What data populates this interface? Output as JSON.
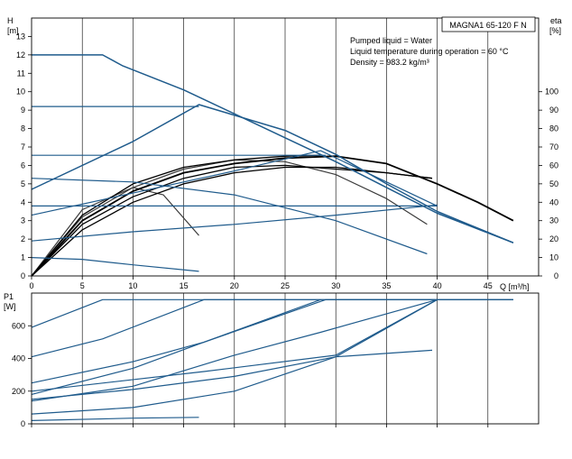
{
  "model_label": "MAGNA1 65-120 F N",
  "info_lines": [
    "Pumped liquid = Water",
    "Liquid temperature during operation = 60 °C",
    "Density = 983.2 kg/m³"
  ],
  "colors": {
    "curve_blue": "#1f5b8c",
    "curve_black": "#000000",
    "curve_gray": "#3a3a3a",
    "axis": "#000000",
    "grid": "#000000"
  },
  "chart_data": [
    {
      "type": "line",
      "y_label_line1": "H",
      "y_label_line2": "[m]",
      "y2_label_line1": "eta",
      "y2_label_line2": "[%]",
      "xlabel": "Q [m³/h]",
      "xlim": [
        0,
        50
      ],
      "ylim": [
        0,
        14
      ],
      "y2lim": [
        0,
        140
      ],
      "x_ticks": [
        0,
        5,
        10,
        15,
        20,
        25,
        30,
        35,
        40,
        45
      ],
      "y_ticks": [
        0,
        1,
        2,
        3,
        4,
        5,
        6,
        7,
        8,
        9,
        10,
        11,
        12,
        13
      ],
      "y2_ticks": [
        0,
        10,
        20,
        30,
        40,
        50,
        60,
        70,
        80,
        90,
        100
      ],
      "head_curves_blue": [
        {
          "x": [
            0,
            7,
            9,
            15,
            20,
            25,
            30,
            35,
            40,
            47.5
          ],
          "y": [
            12,
            12,
            11.4,
            10.1,
            8.8,
            7.5,
            6.2,
            4.8,
            3.4,
            1.8
          ]
        },
        {
          "x": [
            0,
            16.5
          ],
          "y": [
            9.2,
            9.2
          ]
        },
        {
          "x": [
            0,
            10,
            16.5,
            25,
            30,
            35,
            40,
            47.5
          ],
          "y": [
            4.7,
            7.3,
            9.3,
            7.9,
            6.6,
            5.0,
            3.5,
            1.8
          ]
        },
        {
          "x": [
            0,
            29
          ],
          "y": [
            6.55,
            6.55
          ]
        },
        {
          "x": [
            0,
            10,
            20,
            28.5,
            40
          ],
          "y": [
            3.3,
            4.5,
            5.7,
            6.8,
            3.8
          ]
        },
        {
          "x": [
            0,
            10,
            20,
            30,
            39
          ],
          "y": [
            5.3,
            5.1,
            4.4,
            3.0,
            1.2
          ]
        },
        {
          "x": [
            0,
            40
          ],
          "y": [
            3.8,
            3.8
          ]
        },
        {
          "x": [
            0,
            10,
            20,
            30,
            40
          ],
          "y": [
            1.9,
            2.4,
            2.8,
            3.3,
            3.85
          ]
        },
        {
          "x": [
            0,
            5,
            10,
            16.5
          ],
          "y": [
            1.0,
            0.9,
            0.6,
            0.25
          ]
        }
      ],
      "efficiency_curves_black": [
        {
          "x": [
            0,
            5,
            10,
            15,
            20,
            25,
            30,
            35,
            40,
            44,
            47.5
          ],
          "y": [
            0,
            3.0,
            4.6,
            5.6,
            6.1,
            6.4,
            6.5,
            6.1,
            5.0,
            4.0,
            3.0
          ]
        },
        {
          "x": [
            0,
            5,
            10,
            15,
            20,
            25,
            28.5
          ],
          "y": [
            0,
            3.3,
            5.0,
            5.9,
            6.3,
            6.5,
            6.55
          ]
        },
        {
          "x": [
            0,
            5,
            10,
            15,
            20,
            25,
            30,
            35,
            39.5
          ],
          "y": [
            0,
            2.8,
            4.3,
            5.3,
            5.9,
            6.0,
            5.8,
            5.6,
            5.3
          ]
        },
        {
          "x": [
            0,
            5,
            10,
            15,
            20,
            25,
            30,
            35,
            39.5
          ],
          "y": [
            0,
            2.5,
            4.0,
            5.0,
            5.6,
            5.9,
            5.9,
            5.6,
            5.3
          ]
        }
      ],
      "efficiency_curves_gray": [
        {
          "x": [
            0,
            5,
            10,
            15,
            20,
            25,
            30,
            35,
            39
          ],
          "y": [
            0,
            3.2,
            4.8,
            5.8,
            6.3,
            6.2,
            5.5,
            4.2,
            2.8
          ]
        },
        {
          "x": [
            0,
            5,
            10,
            13,
            16.5
          ],
          "y": [
            0,
            3.6,
            4.8,
            4.4,
            2.2
          ]
        }
      ]
    },
    {
      "type": "line",
      "y_label_line1": "P1",
      "y_label_line2": "[W]",
      "xlim": [
        0,
        50
      ],
      "ylim": [
        0,
        800
      ],
      "y_ticks": [
        0,
        200,
        400,
        600
      ],
      "power_curves_blue": [
        {
          "x": [
            0,
            7,
            47.5
          ],
          "y": [
            590,
            760,
            760
          ]
        },
        {
          "x": [
            0,
            7,
            17,
            47.5
          ],
          "y": [
            410,
            520,
            760,
            760
          ]
        },
        {
          "x": [
            0,
            10,
            17,
            29,
            47.5
          ],
          "y": [
            250,
            380,
            500,
            760,
            760
          ]
        },
        {
          "x": [
            0,
            10,
            17,
            28.5
          ],
          "y": [
            180,
            340,
            500,
            760
          ]
        },
        {
          "x": [
            0,
            10,
            20,
            28.5,
            40
          ],
          "y": [
            140,
            230,
            420,
            560,
            760
          ]
        },
        {
          "x": [
            0,
            17,
            30,
            40
          ],
          "y": [
            200,
            320,
            420,
            760
          ]
        },
        {
          "x": [
            0,
            10,
            20,
            30,
            39.5
          ],
          "y": [
            150,
            210,
            290,
            410,
            450
          ]
        },
        {
          "x": [
            0,
            10,
            20,
            30,
            40
          ],
          "y": [
            60,
            100,
            200,
            410,
            760
          ]
        },
        {
          "x": [
            0,
            10,
            16.5
          ],
          "y": [
            20,
            35,
            40
          ]
        }
      ]
    }
  ]
}
